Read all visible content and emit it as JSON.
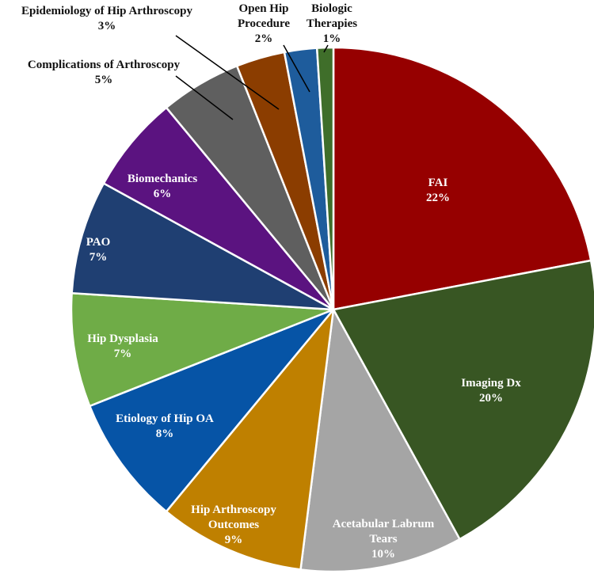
{
  "chart_data": {
    "type": "pie",
    "title": "",
    "slices": [
      {
        "name": "FAI",
        "value": 22,
        "label": "22%",
        "color": "#960000",
        "text_color": "#ffffff",
        "name_lines": [
          "FAI"
        ]
      },
      {
        "name": "Imaging Dx",
        "value": 20,
        "label": "20%",
        "color": "#385623",
        "text_color": "#ffffff",
        "name_lines": [
          "Imaging Dx"
        ]
      },
      {
        "name": "Acetabular Labrum Tears",
        "value": 10,
        "label": "10%",
        "color": "#a5a5a5",
        "text_color": "#ffffff",
        "name_lines": [
          "Acetabular Labrum",
          "Tears"
        ]
      },
      {
        "name": "Hip Arthroscopy Outcomes",
        "value": 9,
        "label": "9%",
        "color": "#bf8000",
        "text_color": "#ffffff",
        "name_lines": [
          "Hip Arthroscopy",
          "Outcomes"
        ]
      },
      {
        "name": "Etiology of Hip OA",
        "value": 8,
        "label": "8%",
        "color": "#0654a6",
        "text_color": "#ffffff",
        "name_lines": [
          "Etiology of Hip OA"
        ]
      },
      {
        "name": "Hip Dysplasia",
        "value": 7,
        "label": "7%",
        "color": "#6fac47",
        "text_color": "#ffffff",
        "name_lines": [
          "Hip Dysplasia"
        ]
      },
      {
        "name": "PAO",
        "value": 7,
        "label": "7%",
        "color": "#1f3f72",
        "text_color": "#ffffff",
        "name_lines": [
          "PAO"
        ]
      },
      {
        "name": "Biomechanics",
        "value": 6,
        "label": "6%",
        "color": "#5b1380",
        "text_color": "#ffffff",
        "name_lines": [
          "Biomechanics"
        ]
      },
      {
        "name": "Complications of Arthroscopy",
        "value": 5,
        "label": "5%",
        "color": "#5f5f5f",
        "text_color": "#111111",
        "name_lines": [
          "Complications of Arthroscopy"
        ]
      },
      {
        "name": "Epidemiology of Hip Arthroscopy",
        "value": 3,
        "label": "3%",
        "color": "#8b3d00",
        "text_color": "#111111",
        "name_lines": [
          "Epidemiology of Hip Arthroscopy"
        ]
      },
      {
        "name": "Open Hip Procedure",
        "value": 2,
        "label": "2%",
        "color": "#1e5c9c",
        "text_color": "#111111",
        "name_lines": [
          "Open Hip",
          "Procedure"
        ]
      },
      {
        "name": "Biologic Therapies",
        "value": 1,
        "label": "1%",
        "color": "#3f6e2a",
        "text_color": "#111111",
        "name_lines": [
          "Biologic",
          "Therapies"
        ]
      }
    ],
    "legend": "none"
  }
}
